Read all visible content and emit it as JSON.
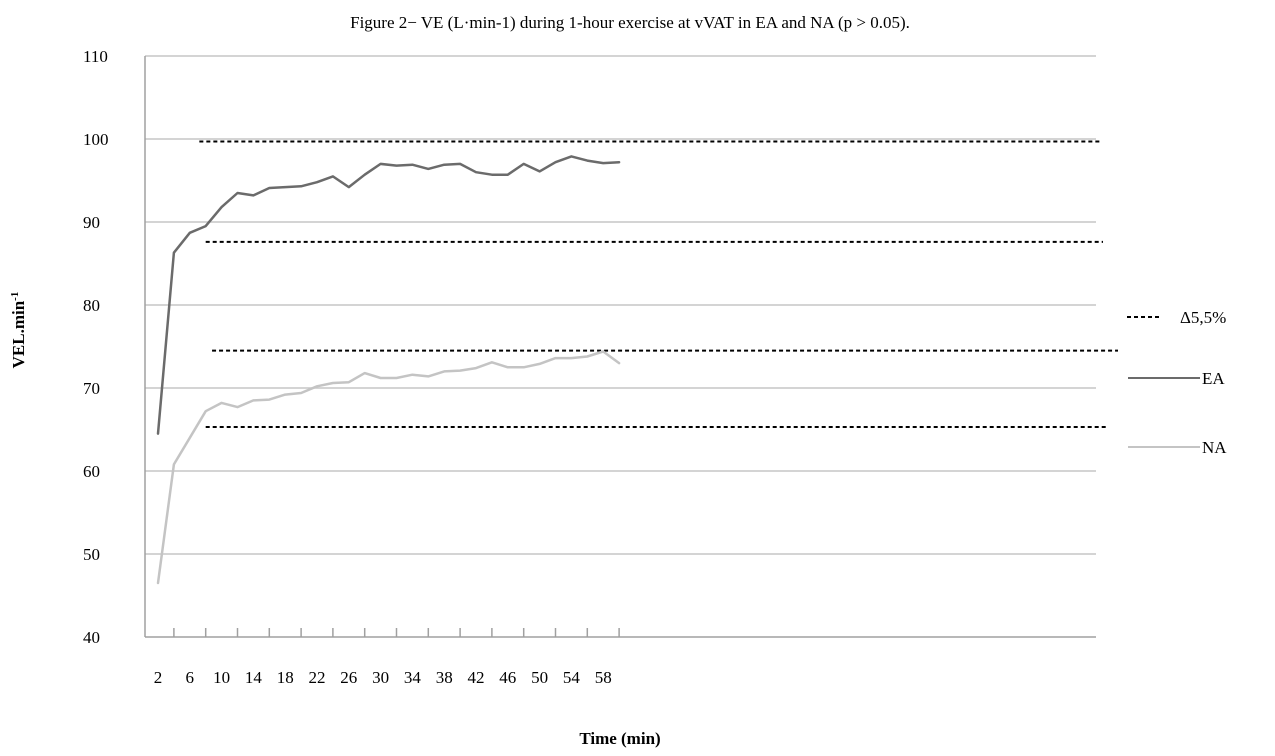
{
  "chart_data": {
    "type": "line",
    "title": "Figure 2− VE (L·min-1) during 1-hour exercise at vVAT in EA and NA (p > 0.05).",
    "xlabel": "Time (min)",
    "ylabel": "VEL.min",
    "ylabel_sup": "-1",
    "ylim": [
      40,
      110
    ],
    "yticks": [
      40,
      50,
      60,
      70,
      80,
      90,
      100,
      110
    ],
    "x_tick_labels": [
      "2",
      "6",
      "10",
      "14",
      "18",
      "22",
      "26",
      "30",
      "34",
      "38",
      "42",
      "46",
      "50",
      "54",
      "58"
    ],
    "x": [
      2,
      4,
      6,
      8,
      10,
      12,
      14,
      16,
      18,
      20,
      22,
      24,
      26,
      28,
      30,
      32,
      34,
      36,
      38,
      40,
      42,
      44,
      46,
      48,
      50,
      52,
      54,
      56,
      58,
      60
    ],
    "grid": "horizontal",
    "legend_position": "right",
    "series": [
      {
        "name": "EA",
        "color": "#6b6b6b",
        "values": [
          64.5,
          86.3,
          88.7,
          89.5,
          91.8,
          93.5,
          93.2,
          94.1,
          94.2,
          94.3,
          94.8,
          95.5,
          94.2,
          95.7,
          97.0,
          96.8,
          96.9,
          96.4,
          96.9,
          97.0,
          96.0,
          95.7,
          95.7,
          97.0,
          96.1,
          97.2,
          97.9,
          97.4,
          97.1,
          97.2
        ]
      },
      {
        "name": "NA",
        "color": "#c4c4c4",
        "values": [
          46.5,
          60.8,
          64.0,
          67.2,
          68.2,
          67.7,
          68.5,
          68.6,
          69.2,
          69.4,
          70.2,
          70.6,
          70.7,
          71.8,
          71.2,
          71.2,
          71.6,
          71.4,
          72.0,
          72.1,
          72.4,
          73.1,
          72.5,
          72.5,
          72.9,
          73.6,
          73.6,
          73.8,
          74.4,
          73.0
        ]
      }
    ],
    "reference_lines": [
      {
        "group": "EA",
        "y": 99.7,
        "x_from": 7.2
      },
      {
        "group": "EA",
        "y": 87.6,
        "x_from": 8.0
      },
      {
        "group": "NA",
        "y": 74.5,
        "x_from": 8.8
      },
      {
        "group": "NA",
        "y": 65.3,
        "x_from": 8.0
      }
    ],
    "reference_label": "Δ5,5%"
  }
}
